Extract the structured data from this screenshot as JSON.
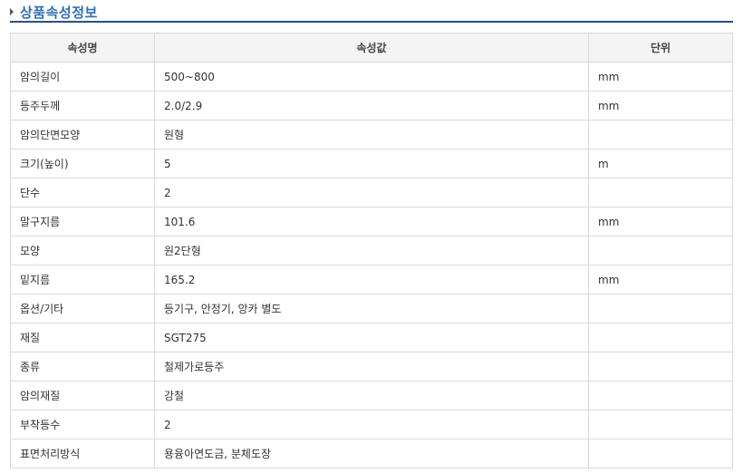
{
  "title": "상품속성정보",
  "headers": [
    "속성명",
    "속성값",
    "단위"
  ],
  "rows": [
    [
      "암의길이",
      "500~800",
      "mm"
    ],
    [
      "등주두께",
      "2.0/2.9",
      "mm"
    ],
    [
      "암의단면모양",
      "원형",
      ""
    ],
    [
      "크기(높이)",
      "5",
      "m"
    ],
    [
      "단수",
      "2",
      ""
    ],
    [
      "말구지름",
      "101.6",
      "mm"
    ],
    [
      "모양",
      "원2단형",
      ""
    ],
    [
      "밑지름",
      "165.2",
      "mm"
    ],
    [
      "옵션/기타",
      "등기구, 안정기, 앙카 별도",
      ""
    ],
    [
      "재질",
      "SGT275",
      ""
    ],
    [
      "종류",
      "철제가로등주",
      ""
    ],
    [
      "암의재질",
      "강철",
      ""
    ],
    [
      "부착등수",
      "2",
      ""
    ],
    [
      "표면처리방식",
      "용융아연도금, 분체도장",
      ""
    ]
  ]
}
